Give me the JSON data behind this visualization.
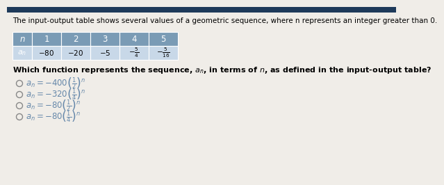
{
  "title": "The input-output table shows several values of a geometric sequence, where n represents an integer greater than 0.",
  "n_values": [
    "1",
    "2",
    "3",
    "4",
    "5"
  ],
  "an_values_text": [
    "-80",
    "-20",
    "-5",
    "$-\\frac{5}{4}$",
    "$-\\frac{5}{16}$"
  ],
  "question": "Which function represents the sequence, $a_n$, in terms of $n$, as defined in the input-output table?",
  "choices": [
    "$a_n=-400\\left(\\frac{1}{2}\\right)^n$",
    "$a_n=-320\\left(\\frac{1}{4}\\right)^n$",
    "$a_n=-80\\left(\\frac{1}{2}\\right)^n$",
    "$a_n=-80\\left(\\frac{1}{4}\\right)^n$"
  ],
  "header_bg": "#7a9bb5",
  "row_bg": "#c8d8e8",
  "bg_color": "#f0ede8",
  "top_bar_color": "#1e3a5a",
  "title_fontsize": 7.5,
  "question_fontsize": 8.0,
  "choice_fontsize": 8.5,
  "table_fontsize": 8.5
}
